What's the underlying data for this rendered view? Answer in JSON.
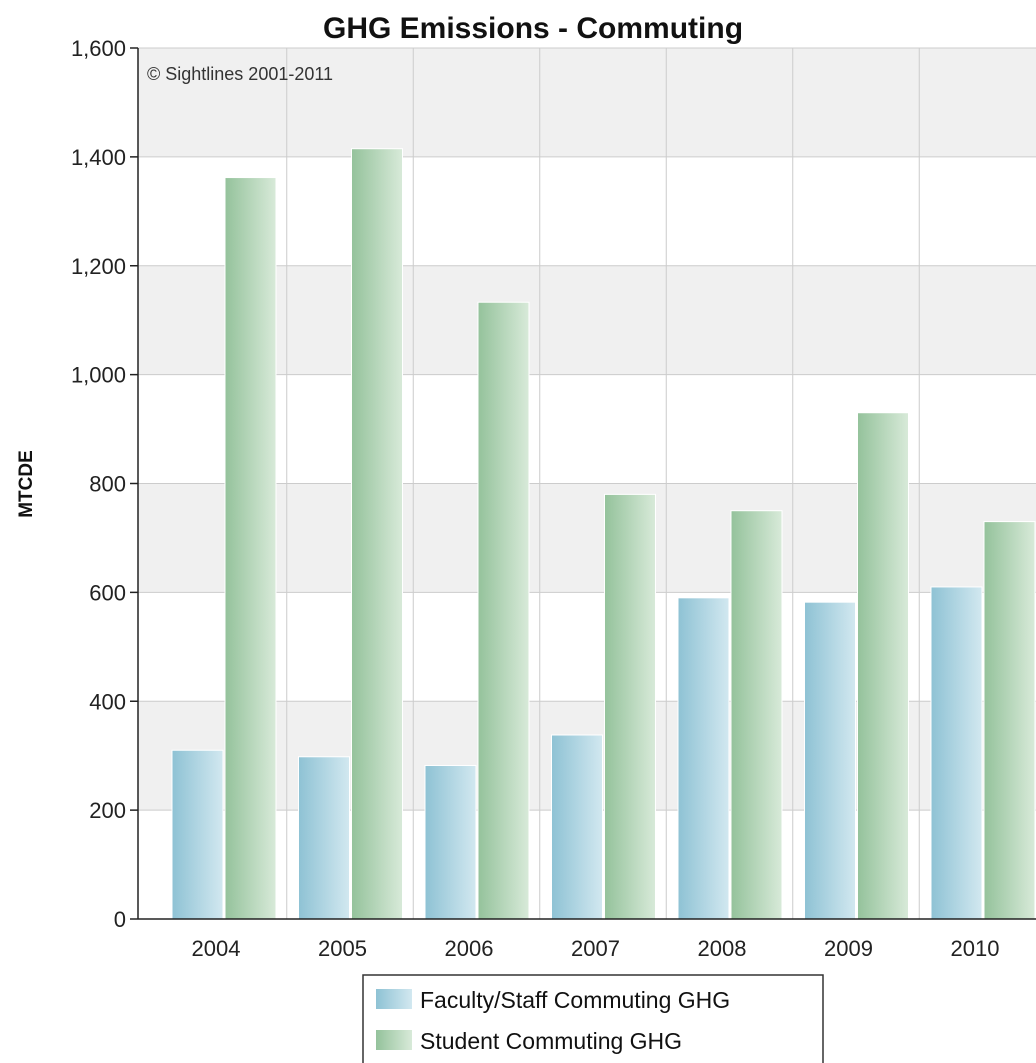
{
  "chart_data": {
    "type": "bar",
    "title": "GHG Emissions - Commuting",
    "credit": "© Sightlines 2001-2011",
    "xlabel": "",
    "ylabel": "MTCDE",
    "ylim": [
      0,
      1600
    ],
    "yticks": [
      0,
      200,
      400,
      600,
      800,
      1000,
      1200,
      1400,
      1600
    ],
    "ytick_labels": [
      "0",
      "200",
      "400",
      "600",
      "800",
      "1,000",
      "1,200",
      "1,400",
      "1,600"
    ],
    "categories": [
      "2004",
      "2005",
      "2006",
      "2007",
      "2008",
      "2009",
      "2010"
    ],
    "series": [
      {
        "name": "Faculty/Staff Commuting GHG",
        "values": [
          310,
          298,
          282,
          338,
          590,
          582,
          610
        ]
      },
      {
        "name": "Student Commuting GHG",
        "values": [
          1362,
          1415,
          1133,
          780,
          750,
          930,
          730
        ]
      }
    ],
    "colors": {
      "faculty_light": "#cfe6ee",
      "faculty_dark": "#8ec2d4",
      "student_light": "#d5e8d6",
      "student_dark": "#94c29b",
      "band": "#f0f0f0",
      "grid": "#cccccc"
    },
    "grid": true,
    "legend_position": "bottom"
  }
}
